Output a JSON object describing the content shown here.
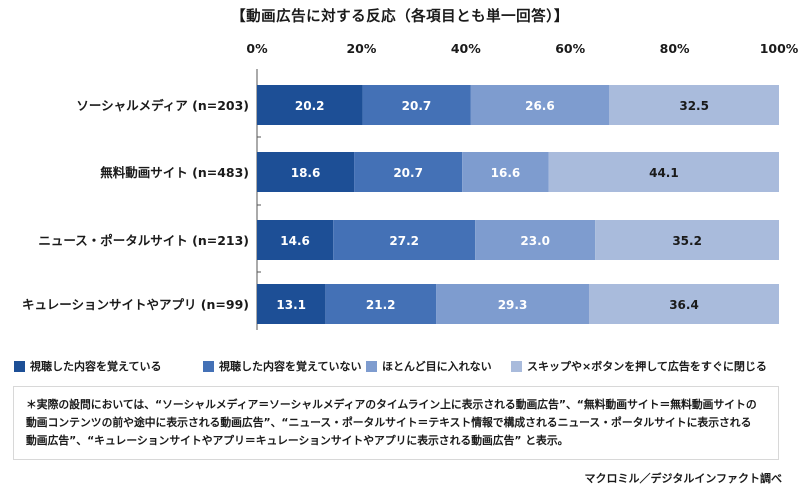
{
  "title": "【動画広告に対する反応（各項目とも単一回答）】",
  "chart_data": {
    "type": "bar",
    "orientation": "horizontal",
    "stacked": true,
    "stacked_percent": true,
    "title": "【動画広告に対する反応（各項目とも単一回答）】",
    "xlim": [
      0,
      100
    ],
    "x_ticks": [
      "0%",
      "20%",
      "40%",
      "60%",
      "80%",
      "100%"
    ],
    "x_tick_values": [
      0,
      20,
      40,
      60,
      80,
      100
    ],
    "grid": false,
    "legend_position": "bottom",
    "categories": [
      "ソーシャルメディア (n=203)",
      "無料動画サイト (n=483)",
      "ニュース・ポータルサイト (n=213)",
      "キュレーションサイトやアプリ (n=99)"
    ],
    "series": [
      {
        "name": "視聴した内容を覚えている",
        "color": "#1d4f96",
        "values": [
          20.2,
          18.6,
          14.6,
          13.1
        ]
      },
      {
        "name": "視聴した内容を覚えていない",
        "color": "#4471b6",
        "values": [
          20.7,
          20.7,
          27.2,
          21.2
        ]
      },
      {
        "name": "ほとんど目に入れない",
        "color": "#7e9ccf",
        "values": [
          26.6,
          16.6,
          23.0,
          29.3
        ]
      },
      {
        "name": "スキップや×ボタンを押して広告をすぐに閉じる",
        "color": "#a9bbdc",
        "values": [
          32.5,
          44.1,
          35.2,
          36.4
        ]
      }
    ],
    "value_labels": [
      [
        "20.2",
        "20.7",
        "26.6",
        "32.5"
      ],
      [
        "18.6",
        "20.7",
        "16.6",
        "44.1"
      ],
      [
        "14.6",
        "27.2",
        "23.0",
        "35.2"
      ],
      [
        "13.1",
        "21.2",
        "29.3",
        "36.4"
      ]
    ]
  },
  "note": "＊実際の設問においては、“ソーシャルメディア＝ソーシャルメディアのタイムライン上に表示される動画広告”、“無料動画サイト＝無料動画サイトの\n動画コンテンツの前や途中に表示される動画広告”、“ニュース・ポータルサイト＝テキスト情報で構成されるニュース・ポータルサイトに表示される\n動画広告”、“キュレーションサイトやアプリ＝キュレーションサイトやアプリに表示される動画広告” と表示。",
  "source": "マクロミル／デジタルインファクト調べ"
}
